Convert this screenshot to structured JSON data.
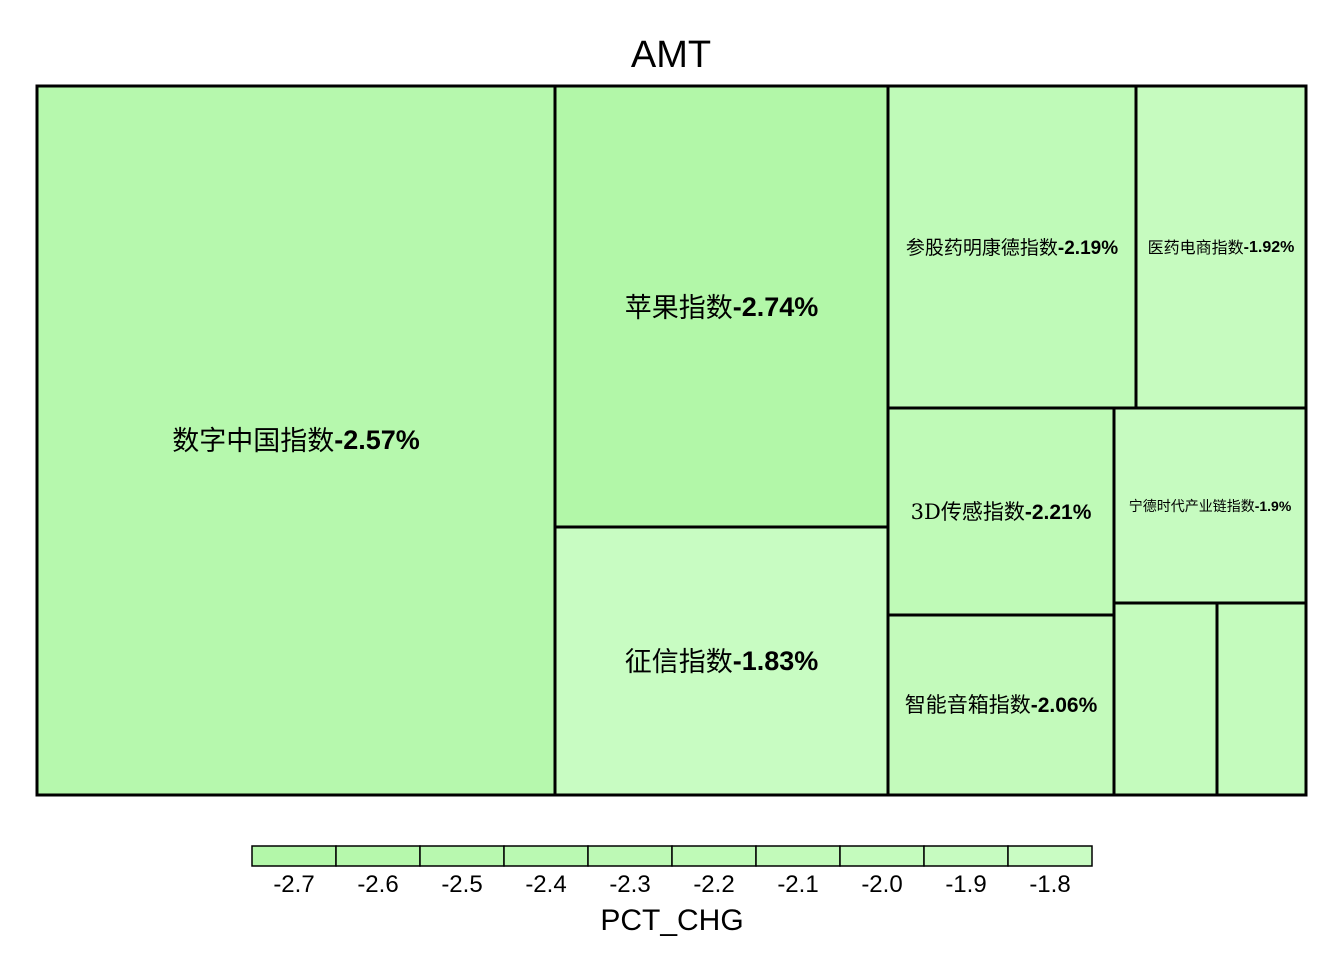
{
  "chart_data": {
    "type": "treemap",
    "title": "AMT",
    "items": [
      {
        "name": "数字中国指数",
        "pct_chg": -2.57,
        "label": "-2.57%"
      },
      {
        "name": "苹果指数",
        "pct_chg": -2.74,
        "label": "-2.74%"
      },
      {
        "name": "征信指数",
        "pct_chg": -1.83,
        "label": "-1.83%"
      },
      {
        "name": "参股药明康德指数",
        "pct_chg": -2.19,
        "label": "-2.19%"
      },
      {
        "name": "医药电商指数",
        "pct_chg": -1.92,
        "label": "-1.92%"
      },
      {
        "name": "3D传感指数",
        "pct_chg": -2.21,
        "label": "-2.21%"
      },
      {
        "name": "宁德时代产业链指数",
        "pct_chg": -1.9,
        "label": "-1.9%"
      },
      {
        "name": "智能音箱指数",
        "pct_chg": -2.06,
        "label": "-2.06%"
      },
      {
        "name": "",
        "pct_chg": -2.0,
        "label": ""
      },
      {
        "name": "",
        "pct_chg": -2.0,
        "label": ""
      }
    ],
    "legend": {
      "title": "PCT_CHG",
      "ticks": [
        "-2.7",
        "-2.6",
        "-2.5",
        "-2.4",
        "-2.3",
        "-2.2",
        "-2.1",
        "-2.0",
        "-1.9",
        "-1.8"
      ],
      "range": [
        -2.75,
        -1.75
      ],
      "placement": "bottom"
    },
    "colors": {
      "low": "#b2f7a8",
      "high": "#cafcc4"
    }
  }
}
